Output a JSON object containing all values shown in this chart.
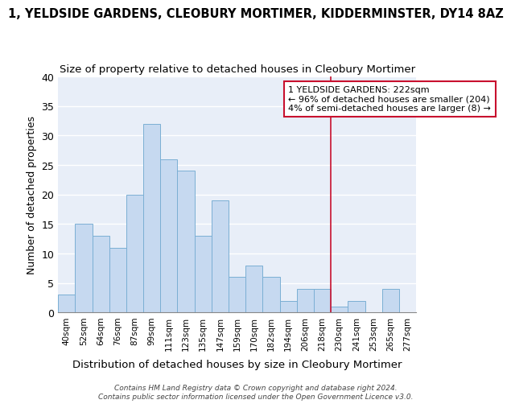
{
  "title": "1, YELDSIDE GARDENS, CLEOBURY MORTIMER, KIDDERMINSTER, DY14 8AZ",
  "subtitle": "Size of property relative to detached houses in Cleobury Mortimer",
  "xlabel": "Distribution of detached houses by size in Cleobury Mortimer",
  "ylabel": "Number of detached properties",
  "categories": [
    "40sqm",
    "52sqm",
    "64sqm",
    "76sqm",
    "87sqm",
    "99sqm",
    "111sqm",
    "123sqm",
    "135sqm",
    "147sqm",
    "159sqm",
    "170sqm",
    "182sqm",
    "194sqm",
    "206sqm",
    "218sqm",
    "230sqm",
    "241sqm",
    "253sqm",
    "265sqm",
    "277sqm"
  ],
  "values": [
    3,
    15,
    13,
    11,
    20,
    32,
    26,
    24,
    13,
    19,
    6,
    8,
    6,
    2,
    4,
    4,
    1,
    2,
    0,
    4,
    0
  ],
  "bar_color": "#c6d9f0",
  "bar_edge_color": "#7bafd4",
  "vertical_line_x": 15.5,
  "annotation_text": "1 YELDSIDE GARDENS: 222sqm\n← 96% of detached houses are smaller (204)\n4% of semi-detached houses are larger (8) →",
  "annotation_box_color": "#c8102e",
  "ylim": [
    0,
    40
  ],
  "yticks": [
    0,
    5,
    10,
    15,
    20,
    25,
    30,
    35,
    40
  ],
  "footnote": "Contains HM Land Registry data © Crown copyright and database right 2024.\nContains public sector information licensed under the Open Government Licence v3.0.",
  "bg_color": "#e8eef8",
  "title_fontsize": 10.5,
  "subtitle_fontsize": 9.5
}
